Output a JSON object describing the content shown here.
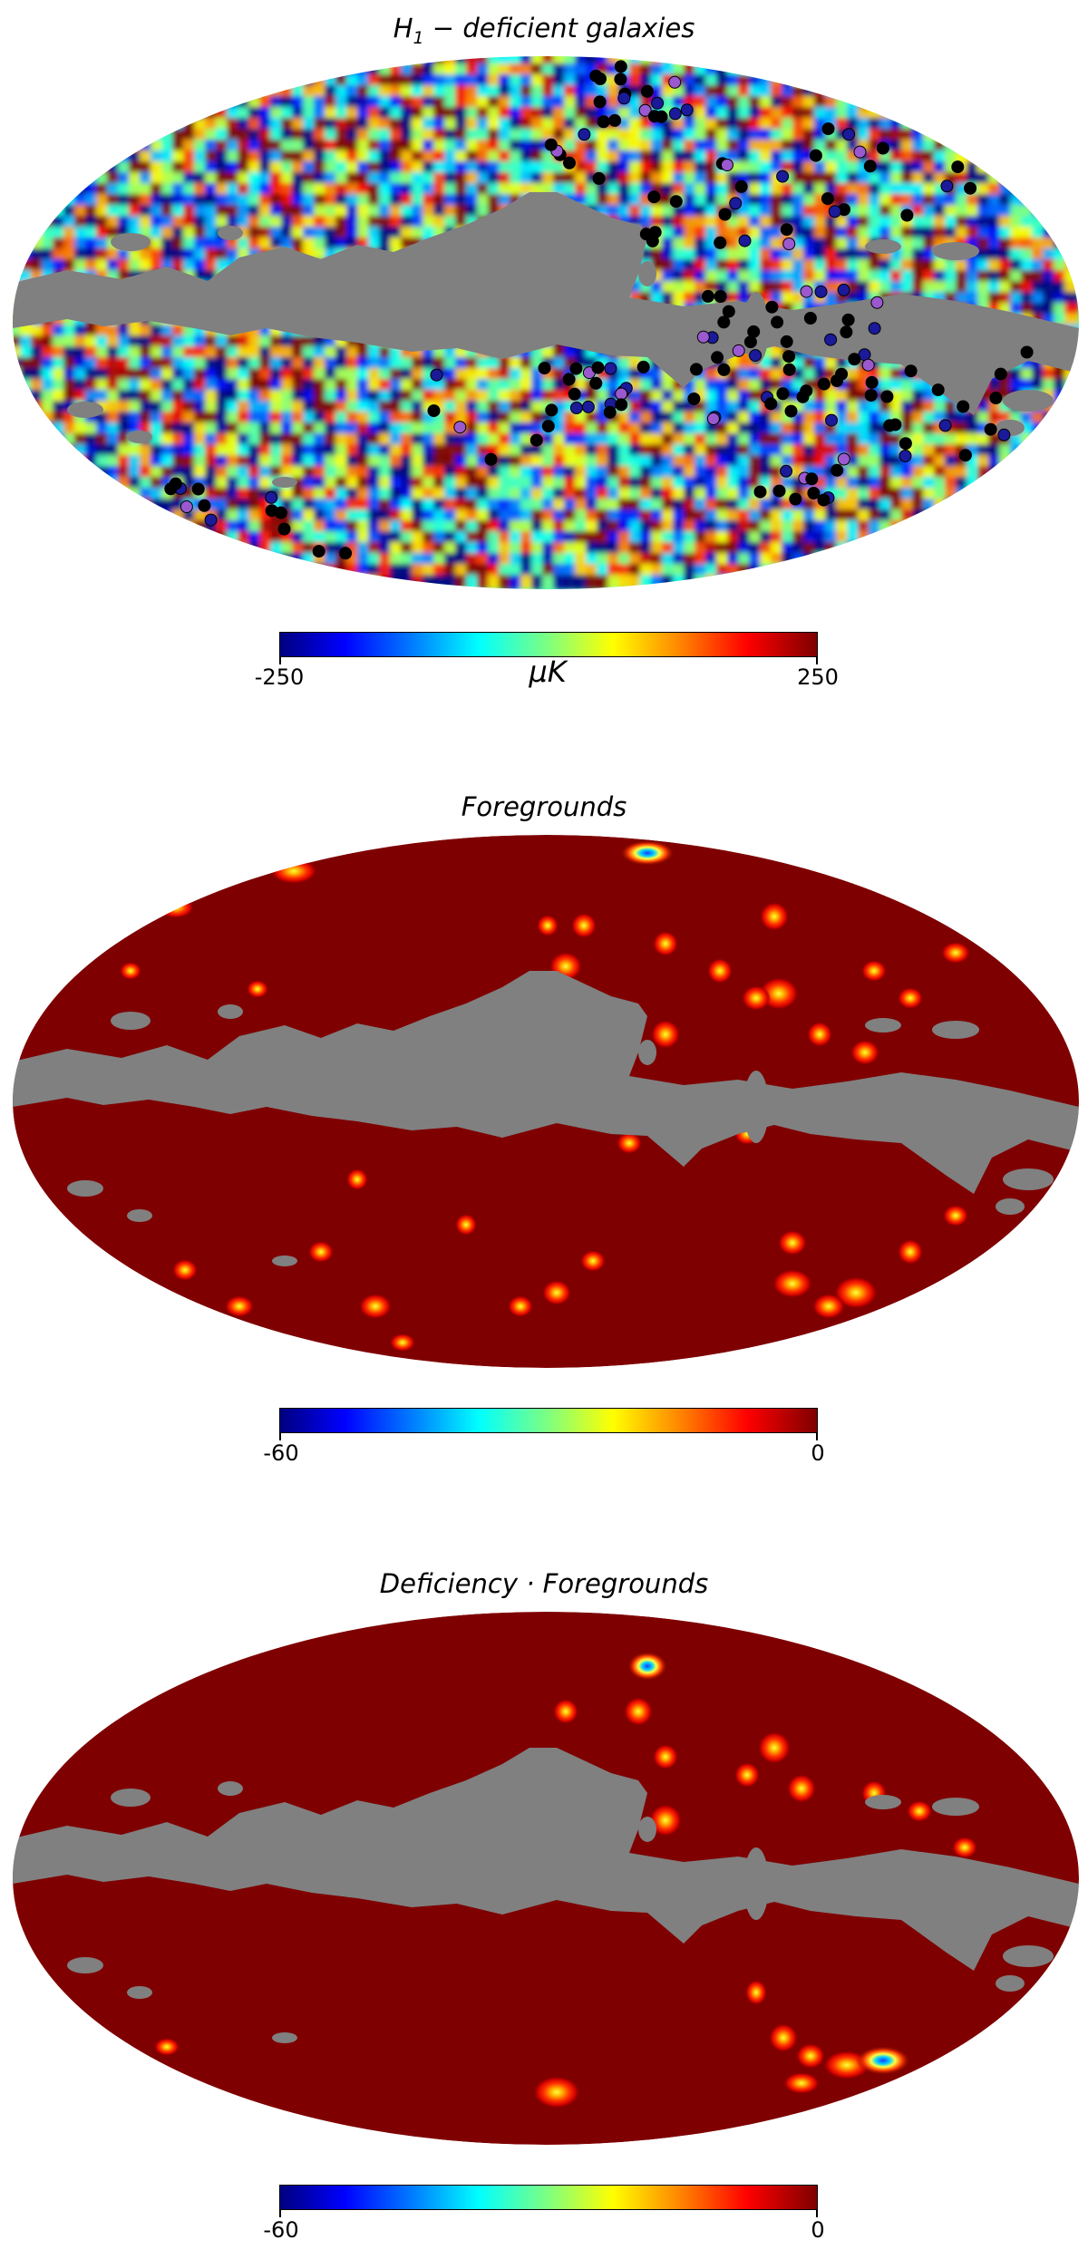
{
  "chart_data": [
    {
      "type": "heatmap",
      "projection": "mollweide",
      "title": {
        "main": "H",
        "sub": "1",
        "rest": " − deficient galaxies"
      },
      "colormap": "jet",
      "range": [
        -250,
        250
      ],
      "colorbar": {
        "min_label": "-250",
        "max_label": "250",
        "unit_label": "μK"
      },
      "masked_color": "#808080",
      "points": {
        "black": "#000000",
        "purple": "#9b59d0",
        "blue": "#1a1a9a"
      }
    },
    {
      "type": "heatmap",
      "projection": "mollweide",
      "title": "Foregrounds",
      "colormap": "jet",
      "range": [
        -60,
        0
      ],
      "colorbar": {
        "min_label": "-60",
        "max_label": "0"
      },
      "background_color": "#7f0000",
      "masked_color": "#808080"
    },
    {
      "type": "heatmap",
      "projection": "mollweide",
      "title": "Deficiency · Foregrounds",
      "colormap": "jet",
      "range": [
        -60,
        0
      ],
      "colorbar": {
        "min_label": "-60",
        "max_label": "0"
      },
      "background_color": "#7f0000",
      "masked_color": "#808080"
    }
  ]
}
